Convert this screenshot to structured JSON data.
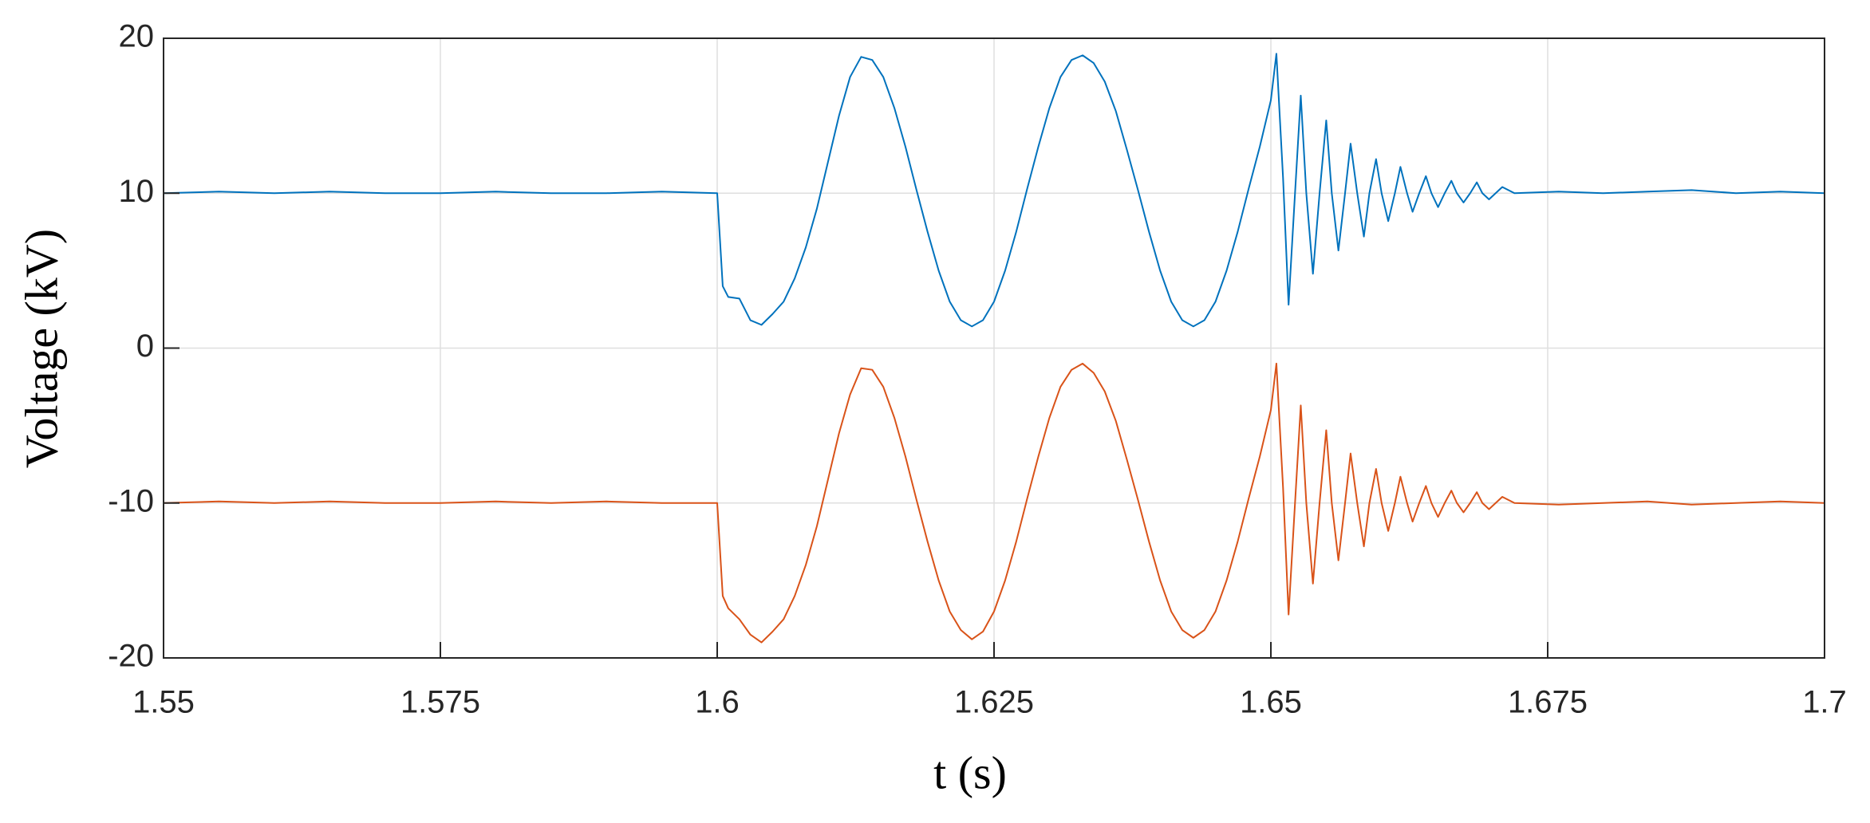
{
  "chart_data": {
    "type": "line",
    "x_label": "t (s)",
    "y_label": "Voltage (kV)",
    "xlim": [
      1.55,
      1.7
    ],
    "xticks": [
      1.55,
      1.575,
      1.6,
      1.625,
      1.65,
      1.675,
      1.7
    ],
    "ylim": [
      -20,
      20
    ],
    "yticks": [
      -20,
      -10,
      0,
      10,
      20
    ],
    "grid": true,
    "x": [
      1.55,
      1.555,
      1.56,
      1.565,
      1.57,
      1.575,
      1.58,
      1.585,
      1.59,
      1.595,
      1.6,
      1.6005,
      1.601,
      1.602,
      1.603,
      1.604,
      1.605,
      1.606,
      1.607,
      1.608,
      1.609,
      1.61,
      1.611,
      1.612,
      1.613,
      1.614,
      1.615,
      1.616,
      1.617,
      1.618,
      1.619,
      1.62,
      1.621,
      1.622,
      1.623,
      1.624,
      1.625,
      1.626,
      1.627,
      1.628,
      1.629,
      1.63,
      1.631,
      1.632,
      1.633,
      1.634,
      1.635,
      1.636,
      1.637,
      1.638,
      1.639,
      1.64,
      1.641,
      1.642,
      1.643,
      1.644,
      1.645,
      1.646,
      1.647,
      1.648,
      1.649,
      1.65,
      1.6505,
      1.6511,
      1.6516,
      1.6521,
      1.6527,
      1.6532,
      1.6538,
      1.6544,
      1.655,
      1.6555,
      1.6561,
      1.6567,
      1.6572,
      1.6578,
      1.6584,
      1.6589,
      1.6595,
      1.66,
      1.6606,
      1.6612,
      1.6617,
      1.6623,
      1.6628,
      1.6634,
      1.664,
      1.6645,
      1.6651,
      1.6657,
      1.6663,
      1.6668,
      1.6674,
      1.668,
      1.6686,
      1.6691,
      1.6697,
      1.6703,
      1.6709,
      1.672,
      1.676,
      1.68,
      1.684,
      1.688,
      1.692,
      1.696,
      1.7
    ],
    "series": [
      {
        "color": "#0072bd",
        "values": [
          10,
          10.1,
          10,
          10.1,
          10,
          10,
          10.1,
          10,
          10,
          10.1,
          10,
          4,
          3.3,
          3.2,
          1.8,
          1.5,
          2.2,
          3.0,
          4.5,
          6.5,
          9,
          12,
          15,
          17.5,
          18.8,
          18.6,
          17.5,
          15.5,
          13,
          10.2,
          7.5,
          5,
          3,
          1.8,
          1.4,
          1.8,
          3,
          5,
          7.5,
          10.3,
          13,
          15.5,
          17.5,
          18.6,
          18.9,
          18.4,
          17.2,
          15.3,
          12.8,
          10.2,
          7.5,
          5,
          3,
          1.8,
          1.4,
          1.8,
          3,
          5,
          7.5,
          10.3,
          13,
          16,
          19,
          11,
          2.8,
          9,
          16.3,
          10,
          4.8,
          10,
          14.7,
          10,
          6.3,
          10,
          13.2,
          10,
          7.2,
          10,
          12.2,
          10,
          8.2,
          10,
          11.7,
          10,
          8.8,
          10,
          11.1,
          10,
          9.1,
          10,
          10.8,
          10,
          9.4,
          10,
          10.7,
          10,
          9.6,
          10,
          10.4,
          10,
          10.1,
          10,
          10.1,
          10.2,
          10,
          10.1,
          10
        ]
      },
      {
        "color": "#d95319",
        "values": [
          -10,
          -9.9,
          -10,
          -9.9,
          -10,
          -10,
          -9.9,
          -10,
          -9.9,
          -10,
          -10,
          -16,
          -16.8,
          -17.5,
          -18.5,
          -19,
          -18.3,
          -17.5,
          -16,
          -14,
          -11.5,
          -8.5,
          -5.5,
          -3,
          -1.3,
          -1.4,
          -2.5,
          -4.5,
          -7,
          -9.8,
          -12.5,
          -15,
          -17,
          -18.2,
          -18.8,
          -18.3,
          -17,
          -15,
          -12.5,
          -9.7,
          -7,
          -4.5,
          -2.5,
          -1.4,
          -1,
          -1.6,
          -2.8,
          -4.7,
          -7.2,
          -9.8,
          -12.5,
          -15,
          -17,
          -18.2,
          -18.7,
          -18.2,
          -17,
          -15,
          -12.5,
          -9.7,
          -7,
          -4,
          -1,
          -9,
          -17.2,
          -11,
          -3.7,
          -10,
          -15.2,
          -10,
          -5.3,
          -10,
          -13.7,
          -10,
          -6.8,
          -10,
          -12.8,
          -10,
          -7.8,
          -10,
          -11.8,
          -10,
          -8.3,
          -10,
          -11.2,
          -10,
          -8.9,
          -10,
          -10.9,
          -10,
          -9.2,
          -10,
          -10.6,
          -10,
          -9.3,
          -10,
          -10.4,
          -10,
          -9.6,
          -10,
          -10.1,
          -10,
          -9.9,
          -10.1,
          -10,
          -9.9,
          -10
        ]
      }
    ]
  }
}
